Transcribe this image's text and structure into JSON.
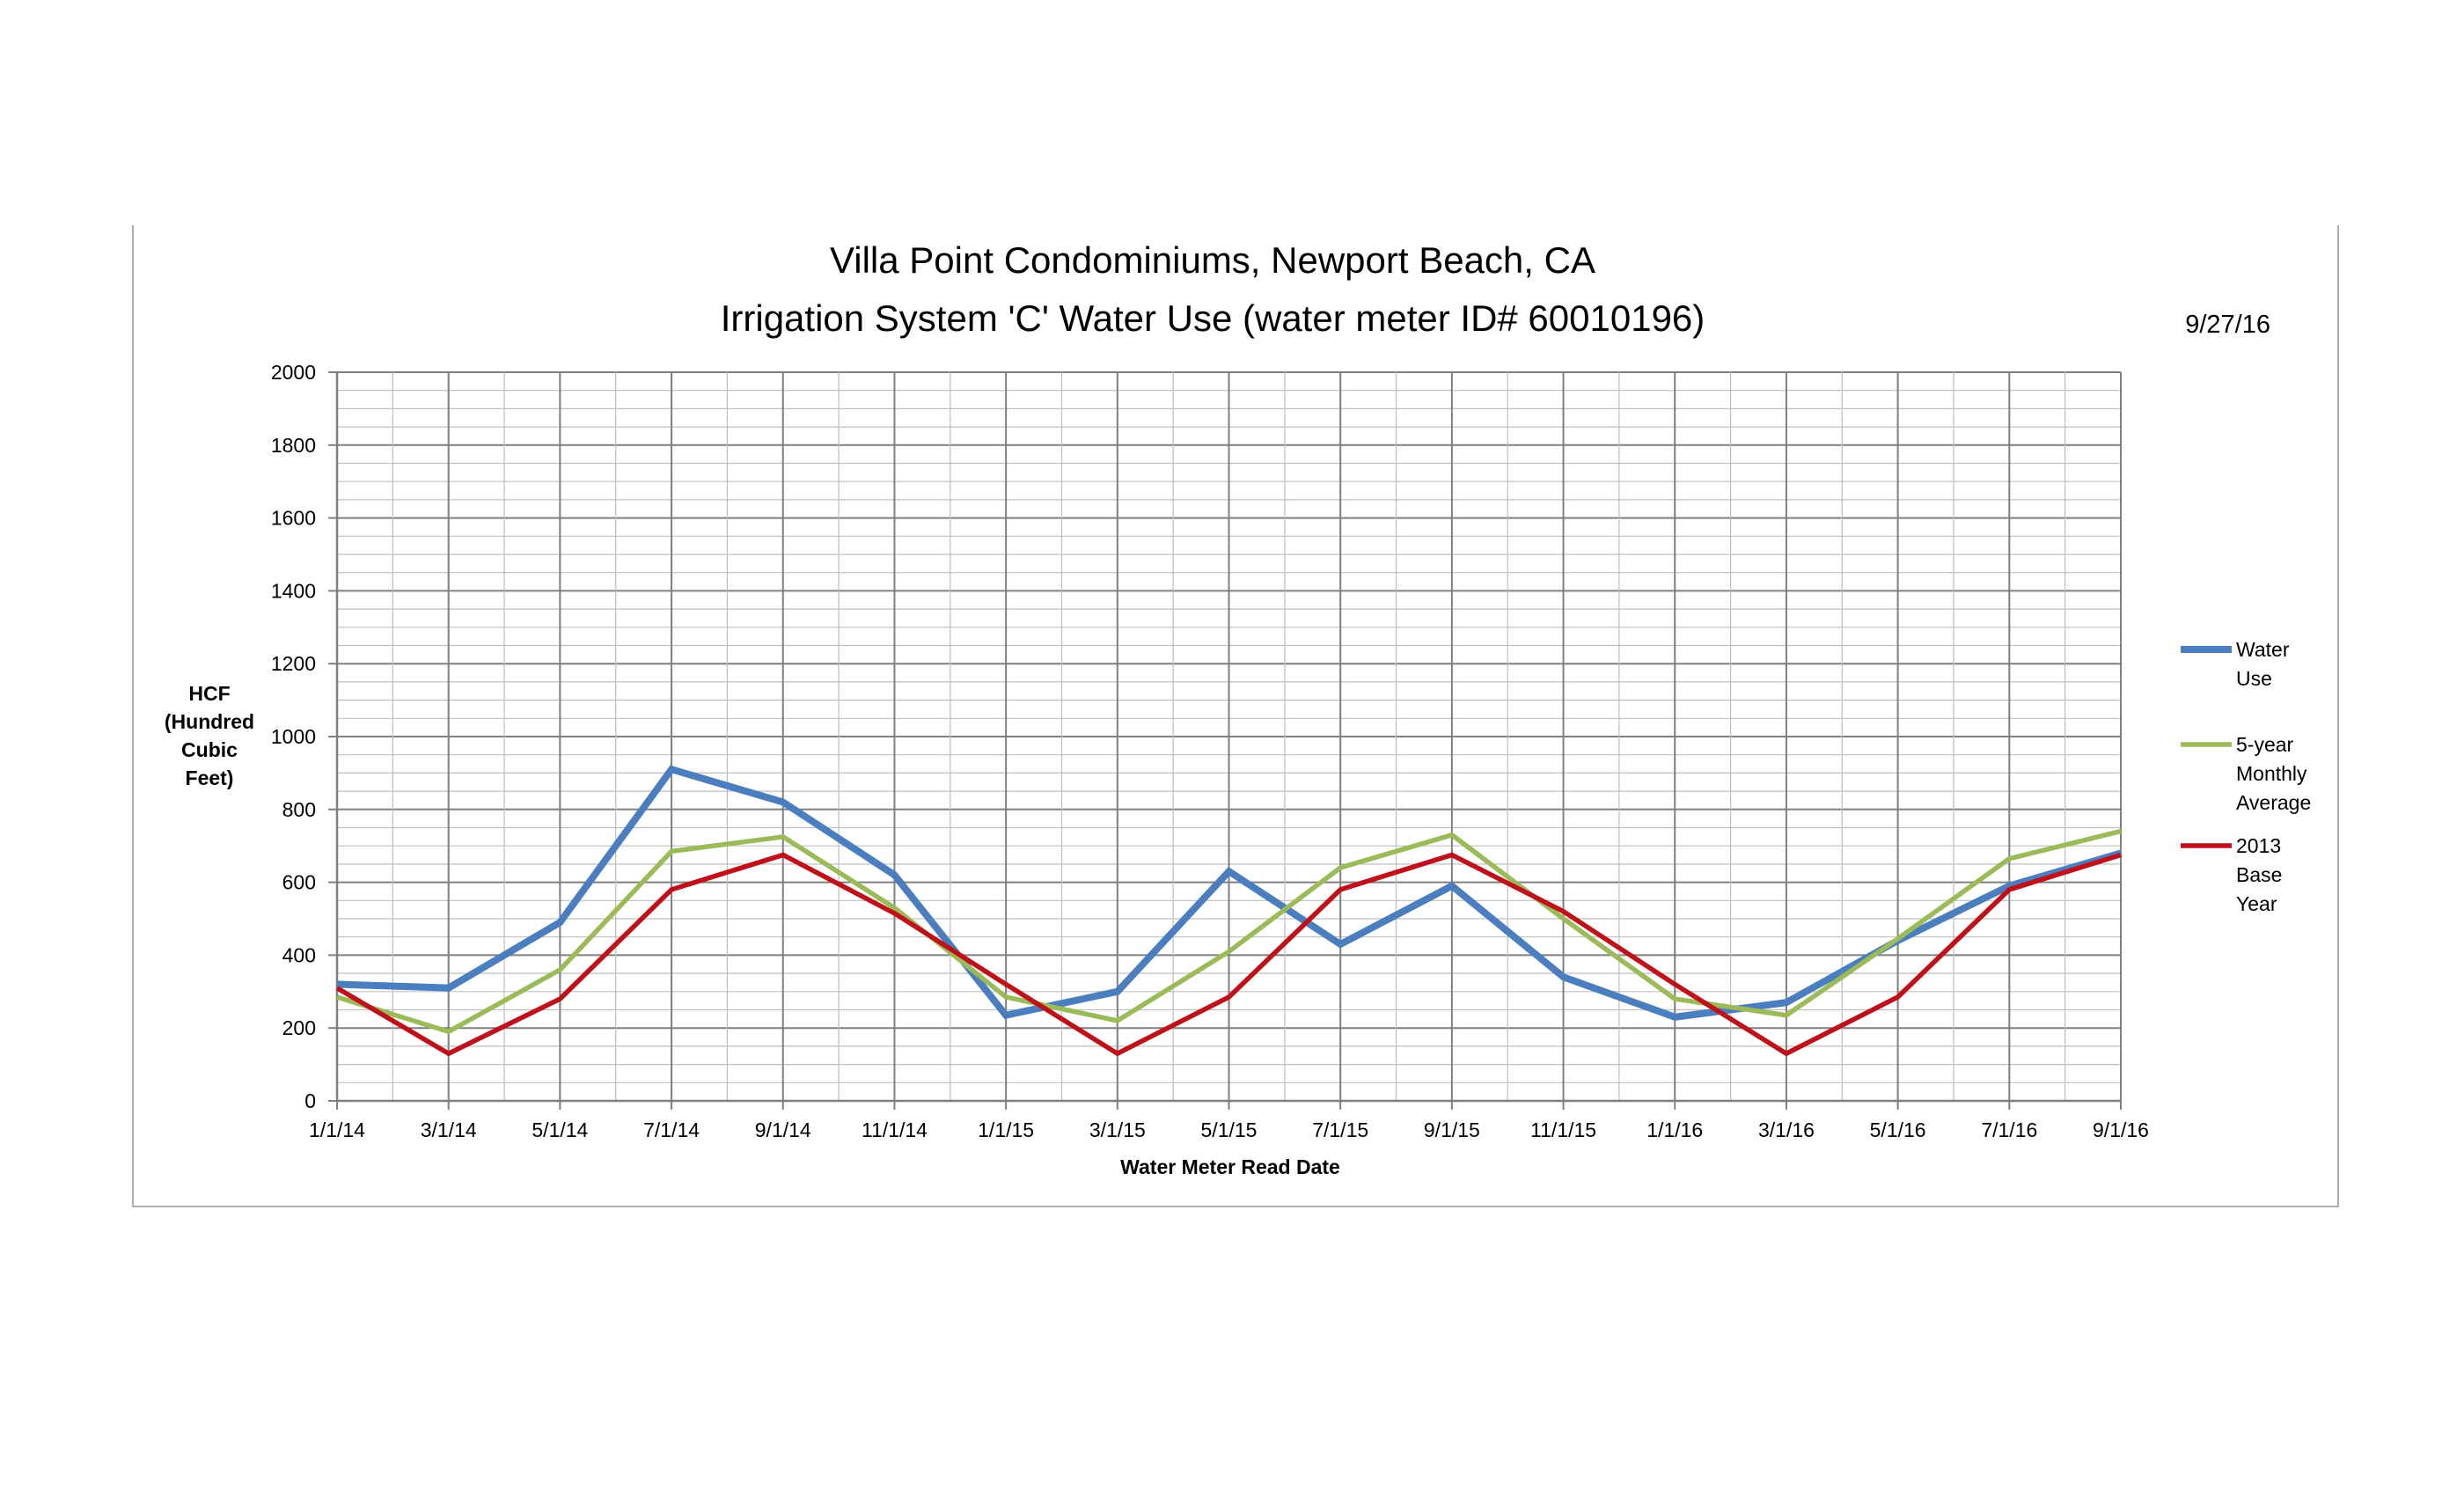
{
  "chart_data": {
    "type": "line",
    "title": "Villa Point Condominiums, Newport Beach, CA",
    "subtitle": "Irrigation System 'C' Water Use (water meter ID# 60010196)",
    "date_stamp": "9/27/16",
    "xlabel": "Water Meter Read Date",
    "ylabel": [
      "HCF",
      "(Hundred",
      "Cubic",
      "Feet)"
    ],
    "ylim": [
      0,
      2000
    ],
    "y_ticks": [
      "0",
      "200",
      "400",
      "600",
      "800",
      "1000",
      "1200",
      "1400",
      "1600",
      "1800",
      "2000"
    ],
    "x_tick_labels": [
      "1/1/14",
      "3/1/14",
      "5/1/14",
      "7/1/14",
      "9/1/14",
      "11/1/14",
      "1/1/15",
      "3/1/15",
      "5/1/15",
      "7/1/15",
      "9/1/15",
      "11/1/15",
      "1/1/16",
      "3/1/16",
      "5/1/16",
      "7/1/16",
      "9/1/16"
    ],
    "x": [
      "1/1/14",
      "3/1/14",
      "5/1/14",
      "7/1/14",
      "9/1/14",
      "11/1/14",
      "1/1/15",
      "3/1/15",
      "5/1/15",
      "7/1/15",
      "9/1/15",
      "11/1/15",
      "1/1/16",
      "3/1/16",
      "5/1/16",
      "7/1/16",
      "9/1/16"
    ],
    "grid": true,
    "legend_position": "right",
    "series": [
      {
        "name": "Water Use",
        "legend_lines": [
          "Water",
          "Use"
        ],
        "color": "#4a7ebf",
        "values": [
          320,
          310,
          490,
          910,
          820,
          620,
          235,
          300,
          630,
          430,
          590,
          340,
          230,
          270,
          440,
          590,
          680
        ]
      },
      {
        "name": "5-year Monthly Average",
        "legend_lines": [
          "5-year",
          "Monthly",
          "Average"
        ],
        "color": "#9bbb59",
        "values": [
          285,
          190,
          360,
          685,
          725,
          530,
          285,
          220,
          410,
          640,
          730,
          500,
          280,
          235,
          445,
          665,
          740
        ]
      },
      {
        "name": "2013 Base Year",
        "legend_lines": [
          "2013",
          "Base",
          "Year"
        ],
        "color": "#c0111a",
        "values": [
          310,
          130,
          280,
          580,
          675,
          515,
          320,
          130,
          285,
          580,
          675,
          520,
          320,
          130,
          285,
          580,
          675
        ]
      }
    ]
  }
}
